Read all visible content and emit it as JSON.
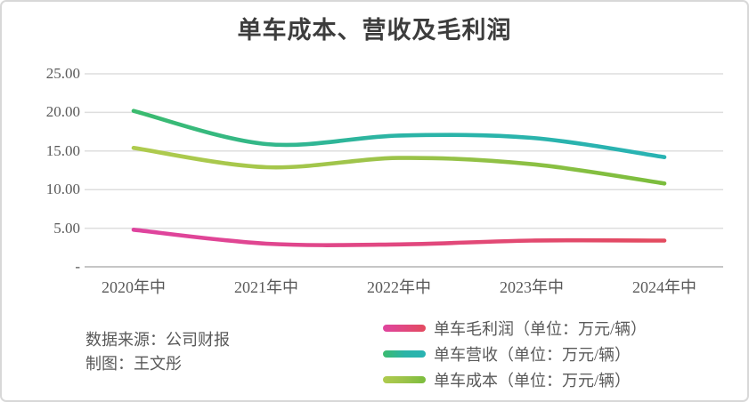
{
  "chart_data": {
    "type": "line",
    "title": "单车成本、营收及毛利润",
    "categories": [
      "2020年中",
      "2021年中",
      "2022年中",
      "2023年中",
      "2024年中"
    ],
    "series": [
      {
        "name": "单车毛利润",
        "label": "单车毛利润（单位：万元/辆）",
        "values": [
          4.8,
          3.0,
          2.9,
          3.4,
          3.4
        ],
        "gradient": [
          "#DF449F",
          "#E14880",
          "#E34B5F"
        ]
      },
      {
        "name": "单车营收",
        "label": "单车营收（单位：万元/辆）",
        "values": [
          20.2,
          15.9,
          17.0,
          16.7,
          14.2
        ],
        "gradient": [
          "#3BBB6E",
          "#2BB4A6",
          "#29B3B3"
        ]
      },
      {
        "name": "单车成本",
        "label": "单车成本（单位：万元/辆）",
        "values": [
          15.4,
          12.9,
          14.1,
          13.3,
          10.8
        ],
        "gradient": [
          "#AFCB4E",
          "#9CC34A",
          "#7BBD3D"
        ]
      }
    ],
    "yticks": [
      "25.00",
      "20.00",
      "15.00",
      "10.00",
      "5.00",
      "-"
    ],
    "ylim": [
      0,
      25
    ],
    "grid": "horizontal",
    "legend_position": "bottom-right",
    "line_smooth": true,
    "colors": {
      "gridline": "#DEDEDE",
      "baseline": "#C6C6C6",
      "title_text": "#3D3D3D",
      "axis_text": "#595959"
    }
  },
  "footer": {
    "source": "数据来源：公司财报",
    "credit": "制图：王文彤"
  }
}
